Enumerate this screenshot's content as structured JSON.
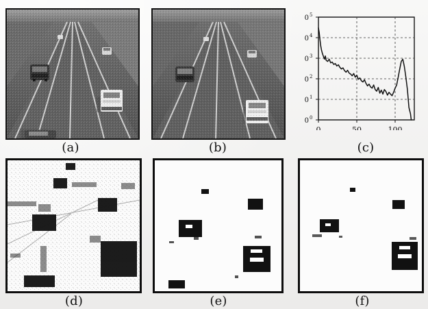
{
  "figure": {
    "panel_labels": [
      "(a)",
      "(b)",
      "(c)",
      "(d)",
      "(e)",
      "(f)"
    ]
  },
  "chart_data": {
    "type": "line",
    "xlim": [
      0,
      125
    ],
    "ylim": [
      1,
      100000
    ],
    "yscale": "log",
    "grid": true,
    "x_ticks": [
      0,
      50,
      100
    ],
    "x_tick_labels": [
      "0",
      "50",
      "100"
    ],
    "y_ticks": [
      1,
      10,
      100,
      1000,
      10000,
      100000
    ],
    "y_tick_labels": [
      {
        "base": "10",
        "exp": "0"
      },
      {
        "base": "10",
        "exp": "1"
      },
      {
        "base": "10",
        "exp": "2"
      },
      {
        "base": "10",
        "exp": "3"
      },
      {
        "base": "10",
        "exp": "4"
      },
      {
        "base": "10",
        "exp": "5"
      }
    ],
    "series": [
      {
        "x": [
          0,
          1,
          2,
          3,
          4,
          5,
          6,
          7,
          8,
          9,
          10,
          12,
          14,
          16,
          18,
          20,
          22,
          24,
          26,
          28,
          30,
          32,
          34,
          36,
          38,
          40,
          42,
          44,
          46,
          48,
          50,
          52,
          54,
          56,
          58,
          60,
          62,
          64,
          66,
          68,
          70,
          72,
          74,
          76,
          78,
          80,
          82,
          84,
          86,
          88,
          90,
          92,
          94,
          96,
          98,
          100,
          102,
          104,
          106,
          108,
          110,
          112,
          114,
          116,
          118,
          120,
          121
        ],
        "y": [
          30000,
          18000,
          8000,
          4000,
          2500,
          1800,
          1400,
          1100,
          900,
          1300,
          800,
          700,
          900,
          600,
          650,
          500,
          550,
          420,
          480,
          360,
          300,
          340,
          250,
          210,
          260,
          190,
          170,
          140,
          180,
          120,
          150,
          95,
          110,
          80,
          70,
          90,
          60,
          45,
          55,
          40,
          35,
          50,
          30,
          25,
          38,
          20,
          28,
          18,
          30,
          24,
          16,
          22,
          18,
          15,
          22,
          35,
          50,
          120,
          300,
          700,
          900,
          400,
          120,
          30,
          4,
          2,
          1
        ]
      }
    ]
  }
}
